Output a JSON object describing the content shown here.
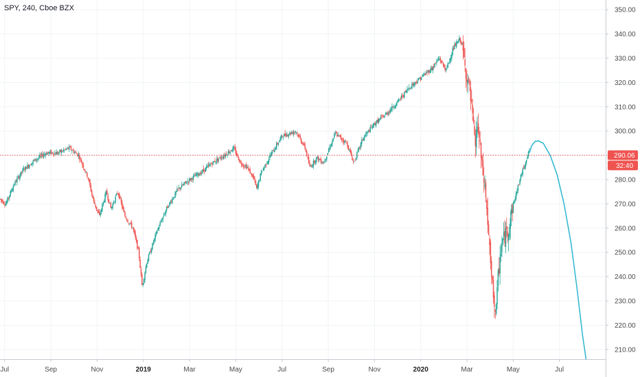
{
  "header": {
    "symbol": "SPY, 240, Cboe BZX"
  },
  "colors": {
    "up": "#26a69a",
    "down": "#ef5350",
    "curve": "#2bb6d0",
    "price_line": "#ef5350",
    "grid": "#f0f3f5"
  },
  "chart_data": {
    "type": "candlestick",
    "title": "SPY, 240, Cboe BZX",
    "ylim": [
      206,
      354
    ],
    "y_ticks": [
      350,
      340,
      330,
      320,
      310,
      300,
      290,
      280,
      270,
      260,
      250,
      240,
      230,
      220,
      210
    ],
    "x_ticks": [
      {
        "label": "Jul",
        "t": 0.2,
        "bold": false
      },
      {
        "label": "Sep",
        "t": 2.2,
        "bold": false
      },
      {
        "label": "Nov",
        "t": 4.2,
        "bold": false
      },
      {
        "label": "2019",
        "t": 6.2,
        "bold": true
      },
      {
        "label": "Mar",
        "t": 8.2,
        "bold": false
      },
      {
        "label": "May",
        "t": 10.2,
        "bold": false
      },
      {
        "label": "Jul",
        "t": 12.2,
        "bold": false
      },
      {
        "label": "Sep",
        "t": 14.2,
        "bold": false
      },
      {
        "label": "Nov",
        "t": 16.2,
        "bold": false
      },
      {
        "label": "2020",
        "t": 18.2,
        "bold": true
      },
      {
        "label": "Mar",
        "t": 20.2,
        "bold": false
      },
      {
        "label": "May",
        "t": 22.2,
        "bold": false
      },
      {
        "label": "Jul",
        "t": 24.2,
        "bold": false
      }
    ],
    "x_range": [
      0,
      26.2
    ],
    "price_anchors": [
      [
        0.0,
        272
      ],
      [
        0.25,
        270
      ],
      [
        0.6,
        278
      ],
      [
        1.0,
        284
      ],
      [
        1.5,
        288
      ],
      [
        2.0,
        291
      ],
      [
        2.5,
        291
      ],
      [
        3.0,
        293
      ],
      [
        3.4,
        290
      ],
      [
        3.8,
        281
      ],
      [
        4.05,
        271
      ],
      [
        4.3,
        265
      ],
      [
        4.6,
        275
      ],
      [
        4.8,
        268
      ],
      [
        5.1,
        275
      ],
      [
        5.4,
        265
      ],
      [
        5.75,
        260
      ],
      [
        6.0,
        250
      ],
      [
        6.15,
        236
      ],
      [
        6.35,
        246
      ],
      [
        6.8,
        259
      ],
      [
        7.2,
        268
      ],
      [
        7.7,
        276
      ],
      [
        8.2,
        280
      ],
      [
        8.7,
        283
      ],
      [
        9.2,
        287
      ],
      [
        9.7,
        290
      ],
      [
        10.1,
        293
      ],
      [
        10.4,
        287
      ],
      [
        10.7,
        285
      ],
      [
        11.0,
        280
      ],
      [
        11.1,
        276
      ],
      [
        11.3,
        283
      ],
      [
        11.7,
        290
      ],
      [
        12.2,
        298
      ],
      [
        12.8,
        300
      ],
      [
        13.2,
        293
      ],
      [
        13.4,
        285
      ],
      [
        13.7,
        289
      ],
      [
        14.0,
        287
      ],
      [
        14.5,
        299
      ],
      [
        15.0,
        295
      ],
      [
        15.3,
        287
      ],
      [
        15.7,
        297
      ],
      [
        16.2,
        303
      ],
      [
        16.7,
        307
      ],
      [
        17.2,
        312
      ],
      [
        17.7,
        318
      ],
      [
        18.2,
        322
      ],
      [
        18.7,
        326
      ],
      [
        19.0,
        330
      ],
      [
        19.3,
        325
      ],
      [
        19.6,
        334
      ],
      [
        19.9,
        338
      ],
      [
        20.0,
        335
      ],
      [
        20.1,
        327
      ],
      [
        20.3,
        318
      ],
      [
        20.45,
        305
      ],
      [
        20.55,
        293
      ],
      [
        20.65,
        303
      ],
      [
        20.75,
        295
      ],
      [
        20.85,
        285
      ],
      [
        21.0,
        275
      ],
      [
        21.15,
        255
      ],
      [
        21.25,
        240
      ],
      [
        21.35,
        232
      ],
      [
        21.45,
        224
      ],
      [
        21.55,
        240
      ],
      [
        21.65,
        250
      ],
      [
        21.75,
        255
      ],
      [
        21.85,
        257
      ],
      [
        22.0,
        260
      ],
      [
        22.15,
        268
      ],
      [
        22.35,
        275
      ],
      [
        22.55,
        282
      ],
      [
        22.75,
        288
      ],
      [
        22.9,
        292
      ]
    ],
    "price_line": {
      "value": 290.06,
      "label": "290.06"
    },
    "countdown_label": "32:40",
    "projection_curve": [
      [
        22.9,
        291
      ],
      [
        23.0,
        294
      ],
      [
        23.15,
        295.8
      ],
      [
        23.3,
        295.9
      ],
      [
        23.5,
        295
      ],
      [
        23.8,
        290
      ],
      [
        24.1,
        282
      ],
      [
        24.4,
        270
      ],
      [
        24.7,
        254
      ],
      [
        24.95,
        236
      ],
      [
        25.2,
        216
      ],
      [
        25.35,
        205
      ]
    ]
  }
}
